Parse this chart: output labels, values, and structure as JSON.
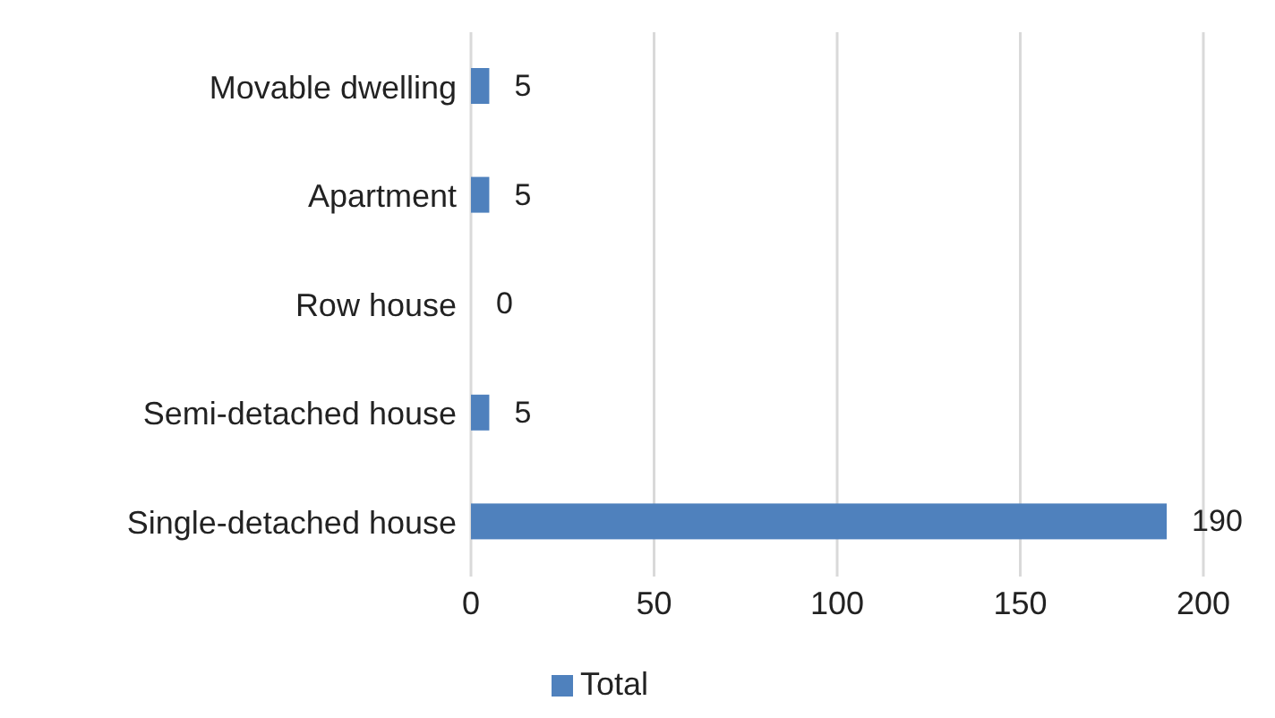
{
  "chart_data": {
    "type": "bar",
    "orientation": "horizontal",
    "categories": [
      "Movable dwelling",
      "Apartment",
      "Row house",
      "Semi-detached house",
      "Single-detached house"
    ],
    "series": [
      {
        "name": "Total",
        "color": "#4f81bd",
        "values": [
          5,
          5,
          0,
          5,
          190
        ]
      }
    ],
    "xlim": [
      0,
      200
    ],
    "xticks": [
      0,
      50,
      100,
      150,
      200
    ],
    "grid": "x",
    "legend": "bottom",
    "data_labels": true
  }
}
